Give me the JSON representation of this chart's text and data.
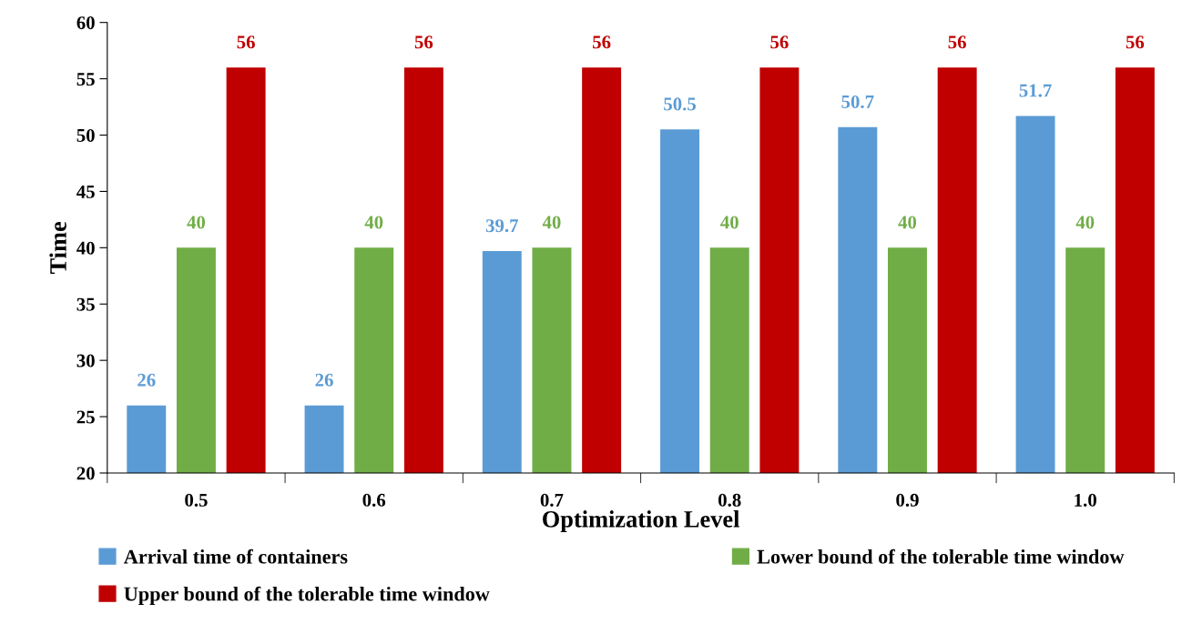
{
  "chart_data": {
    "type": "bar",
    "xlabel": "Optimization Level",
    "ylabel": "Time",
    "categories": [
      "0.5",
      "0.6",
      "0.7",
      "0.8",
      "0.9",
      "1.0"
    ],
    "series": [
      {
        "name": "Arrival time of containers",
        "color": "#5b9bd5",
        "values": [
          26,
          26,
          39.7,
          50.5,
          50.7,
          51.7
        ]
      },
      {
        "name": "Lower bound of the tolerable time window",
        "color": "#70ad47",
        "values": [
          40,
          40,
          40,
          40,
          40,
          40
        ]
      },
      {
        "name": "Upper bound of the tolerable time window",
        "color": "#c00000",
        "values": [
          56,
          56,
          56,
          56,
          56,
          56
        ]
      }
    ],
    "ylim": [
      20,
      60
    ],
    "yticks": [
      20,
      25,
      30,
      35,
      40,
      45,
      50,
      55,
      60
    ],
    "data_labels": true,
    "grid": false,
    "legend": "bottom"
  }
}
